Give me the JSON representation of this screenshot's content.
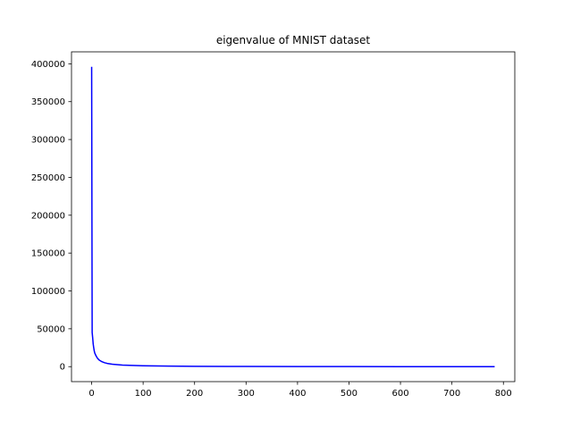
{
  "chart_data": {
    "type": "line",
    "title": "eigenvalue of MNIST dataset",
    "xlabel": "",
    "ylabel": "",
    "xlim": [
      -39.15,
      822.15
    ],
    "ylim": [
      -19800,
      415800
    ],
    "x_ticks": [
      0,
      100,
      200,
      300,
      400,
      500,
      600,
      700,
      800
    ],
    "y_ticks": [
      0,
      50000,
      100000,
      150000,
      200000,
      250000,
      300000,
      350000,
      400000
    ],
    "grid": false,
    "series": [
      {
        "color": "#0000ff",
        "x": [
          0,
          1,
          2,
          3,
          4,
          5,
          6,
          8,
          10,
          12,
          15,
          20,
          25,
          30,
          40,
          50,
          60,
          80,
          100,
          150,
          200,
          300,
          400,
          500,
          600,
          700,
          783
        ],
        "y": [
          396000,
          45000,
          38000,
          30000,
          25000,
          21000,
          18000,
          15000,
          12500,
          10500,
          8500,
          6500,
          5200,
          4300,
          3200,
          2600,
          2100,
          1600,
          1200,
          700,
          450,
          220,
          110,
          50,
          20,
          5,
          0
        ]
      }
    ]
  }
}
